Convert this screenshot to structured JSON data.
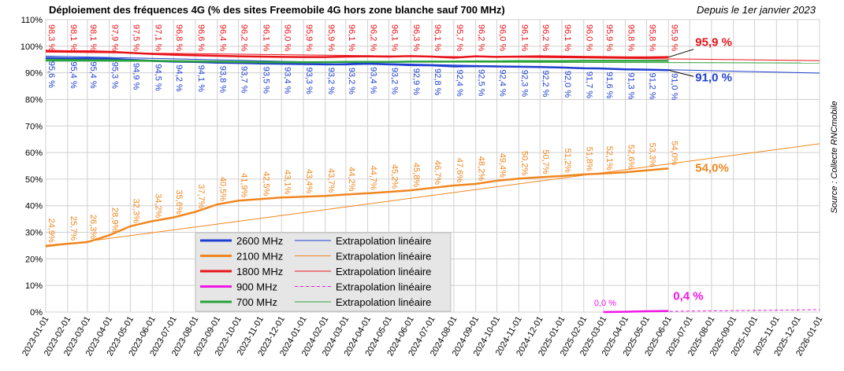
{
  "chart_data": {
    "type": "line",
    "title": "Déploiement des fréquences 4G (% des sites Freemobile 4G hors zone blanche sauf 700 MHz)",
    "subtitle": "Depuis le 1er janvier 2023",
    "source": "Source : Collecte RNCmobile",
    "x": [
      "2023-01-01",
      "2023-02-01",
      "2023-03-01",
      "2023-04-01",
      "2023-05-01",
      "2023-06-01",
      "2023-07-01",
      "2023-08-01",
      "2023-09-01",
      "2023-10-01",
      "2023-11-01",
      "2023-12-01",
      "2024-01-01",
      "2024-02-01",
      "2024-03-01",
      "2024-04-01",
      "2024-05-01",
      "2024-06-01",
      "2024-07-01",
      "2024-08-01",
      "2024-09-01",
      "2024-10-01",
      "2024-11-01",
      "2024-12-01",
      "2025-01-01",
      "2025-02-01",
      "2025-03-01",
      "2025-04-01",
      "2025-05-01",
      "2025-06-01"
    ],
    "series": [
      {
        "name": "2600 MHz",
        "color": "#1f3fd0",
        "end_label": "91,0 %",
        "label_pos": "below",
        "values": [
          95.6,
          95.4,
          95.4,
          95.3,
          94.9,
          94.5,
          94.2,
          94.1,
          93.8,
          93.7,
          93.5,
          93.4,
          93.3,
          93.2,
          93.2,
          93.4,
          93.2,
          92.9,
          92.8,
          92.4,
          92.5,
          92.4,
          92.3,
          92.2,
          92.0,
          91.7,
          91.6,
          91.3,
          91.2,
          91.0
        ],
        "value_labels": [
          "95,6 %",
          "95,4 %",
          "95,4 %",
          "95,3 %",
          "94,9 %",
          "94,5 %",
          "94,2 %",
          "94,1 %",
          "93,8 %",
          "93,7 %",
          "93,5 %",
          "93,4 %",
          "93,3 %",
          "93,2 %",
          "93,2 %",
          "93,4 %",
          "93,2 %",
          "92,9 %",
          "92,8 %",
          "92,4 %",
          "92,5 %",
          "92,4 %",
          "92,3 %",
          "92,2 %",
          "92,0 %",
          "91,7 %",
          "91,6 %",
          "91,3 %",
          "91,2 %",
          "91,0 %"
        ]
      },
      {
        "name": "2100 MHz",
        "color": "#f0861e",
        "end_label": "54,0%",
        "label_pos": "above",
        "values": [
          24.9,
          25.7,
          26.3,
          28.9,
          32.3,
          34.2,
          35.6,
          37.7,
          40.5,
          41.9,
          42.5,
          43.1,
          43.4,
          43.7,
          44.2,
          44.7,
          45.2,
          45.8,
          46.7,
          47.6,
          48.2,
          49.4,
          50.2,
          50.7,
          51.2,
          51.8,
          52.1,
          52.6,
          53.3,
          54.0
        ],
        "value_labels": [
          "24,9%",
          "25,7%",
          "26,3%",
          "28,9%",
          "32,3%",
          "34,2%",
          "35,6%",
          "37,7%",
          "40,5%",
          "41,9%",
          "42,5%",
          "43,1%",
          "43,4%",
          "43,7%",
          "44,2%",
          "44,7%",
          "45,2%",
          "45,8%",
          "46,7%",
          "47,6%",
          "48,2%",
          "49,4%",
          "50,2%",
          "50,7%",
          "51,2%",
          "51,8%",
          "52,1%",
          "52,6%",
          "53,3%",
          "54,0%"
        ]
      },
      {
        "name": "1800 MHz",
        "color": "#e8141b",
        "end_label": "95,9 %",
        "label_pos": "top",
        "values": [
          98.3,
          98.1,
          98.1,
          97.9,
          97.5,
          97.1,
          96.8,
          96.6,
          96.4,
          96.2,
          96.1,
          96.0,
          95.9,
          95.9,
          96.1,
          96.2,
          96.1,
          96.3,
          96.1,
          95.7,
          96.2,
          96.0,
          96.1,
          96.2,
          96.1,
          96.0,
          95.9,
          95.8,
          95.8,
          95.9
        ],
        "value_labels": [
          "98,3 %",
          "98,1 %",
          "98,1 %",
          "97,9 %",
          "97,5 %",
          "97,1 %",
          "96,8 %",
          "96,6 %",
          "96,4 %",
          "96,2 %",
          "96,1 %",
          "96,0 %",
          "95,9 %",
          "95,9 %",
          "96,1 %",
          "96,2 %",
          "96,1 %",
          "96,3 %",
          "96,1 %",
          "95,7 %",
          "96,2 %",
          "96,0 %",
          "96,1 %",
          "96,2 %",
          "96,1 %",
          "96,0 %",
          "95,9 %",
          "95,8 %",
          "95,8 %",
          "95,9 %"
        ]
      },
      {
        "name": "900 MHz",
        "color": "#f015e6",
        "end_label": "0,4 %",
        "label_pos": "above",
        "values": [
          null,
          null,
          null,
          null,
          null,
          null,
          null,
          null,
          null,
          null,
          null,
          null,
          null,
          null,
          null,
          null,
          null,
          null,
          null,
          null,
          null,
          null,
          null,
          null,
          null,
          null,
          0.0,
          0.1,
          0.3,
          0.4
        ],
        "value_labels": [
          null,
          null,
          null,
          null,
          null,
          null,
          null,
          null,
          null,
          null,
          null,
          null,
          null,
          null,
          null,
          null,
          null,
          null,
          null,
          null,
          null,
          null,
          null,
          null,
          null,
          null,
          "0,0 %",
          null,
          null,
          null
        ]
      },
      {
        "name": "700 MHz",
        "color": "#2aa13a",
        "values": [
          94.8,
          94.8,
          94.7,
          94.7,
          94.6,
          94.5,
          94.4,
          94.3,
          94.2,
          94.1,
          94.0,
          94.0,
          94.0,
          94.0,
          94.1,
          94.1,
          94.1,
          94.2,
          94.2,
          94.2,
          94.3,
          94.3,
          94.4,
          94.4,
          94.4,
          94.5,
          94.5,
          94.5,
          94.5,
          94.5
        ]
      }
    ],
    "extrapolations": [
      {
        "name": "Extrapolation linéaire",
        "color": "#1f3fd0",
        "x": [
          "2023-01-01",
          "2026-01-01"
        ],
        "values": [
          96.3,
          89.9
        ]
      },
      {
        "name": "Extrapolation linéaire",
        "color": "#f0861e",
        "x": [
          "2023-01-01",
          "2026-01-01"
        ],
        "values": [
          24.5,
          63.3
        ]
      },
      {
        "name": "Extrapolation linéaire",
        "color": "#e8141b",
        "x": [
          "2023-01-01",
          "2026-01-01"
        ],
        "values": [
          97.8,
          94.6
        ]
      },
      {
        "name": "Extrapolation linéaire",
        "color": "#f015e6",
        "dashed": true,
        "x": [
          "2025-03-01",
          "2026-01-01"
        ],
        "values": [
          0.0,
          0.9
        ]
      },
      {
        "name": "Extrapolation linéaire",
        "color": "#2aa13a",
        "x": [
          "2023-01-01",
          "2026-01-01"
        ],
        "values": [
          94.4,
          93.7
        ]
      }
    ],
    "ylim": [
      0,
      110
    ],
    "yticks": [
      {
        "value": 0,
        "label": "0%"
      },
      {
        "value": 10,
        "label": "10%"
      },
      {
        "value": 20,
        "label": "20%"
      },
      {
        "value": 30,
        "label": "30%"
      },
      {
        "value": 40,
        "label": "40%"
      },
      {
        "value": 50,
        "label": "50%"
      },
      {
        "value": 60,
        "label": "60%"
      },
      {
        "value": 70,
        "label": "70%"
      },
      {
        "value": 80,
        "label": "80%"
      },
      {
        "value": 90,
        "label": "90%"
      },
      {
        "value": 100,
        "label": "100%"
      },
      {
        "value": 110,
        "label": "110%"
      }
    ],
    "xlim": [
      "2023-01-01",
      "2026-01-01"
    ],
    "xticks": [
      "2023-01-01",
      "2023-02-01",
      "2023-03-01",
      "2023-04-01",
      "2023-05-01",
      "2023-06-01",
      "2023-07-01",
      "2023-08-01",
      "2023-09-01",
      "2023-10-01",
      "2023-11-01",
      "2023-12-01",
      "2024-01-01",
      "2024-02-01",
      "2024-03-01",
      "2024-04-01",
      "2024-05-01",
      "2024-06-01",
      "2024-07-01",
      "2024-08-01",
      "2024-09-01",
      "2024-10-01",
      "2024-11-01",
      "2024-12-01",
      "2025-01-01",
      "2025-02-01",
      "2025-03-01",
      "2025-04-01",
      "2025-05-01",
      "2025-06-01",
      "2025-07-01",
      "2025-08-01",
      "2025-09-01",
      "2025-10-01",
      "2025-11-01",
      "2025-12-01",
      "2026-01-01"
    ],
    "grid": true
  }
}
